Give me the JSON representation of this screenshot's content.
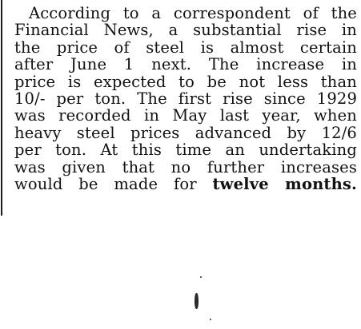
{
  "article": {
    "lines": [
      "According to a correspondent of the",
      "Financial News, a substantial rise in",
      "the price of steel is almost certain",
      "after June 1 next.  The increase in",
      "price is expected to be not less than",
      "10/- per ton.  The first rise since 1929",
      "was recorded in May last year, when",
      "heavy steel prices advanced by 12/6",
      "per ton.  At this time an undertaking",
      "was given that no further increases"
    ],
    "last_line_plain": "would be made for ",
    "last_line_bold": "twelve months."
  }
}
